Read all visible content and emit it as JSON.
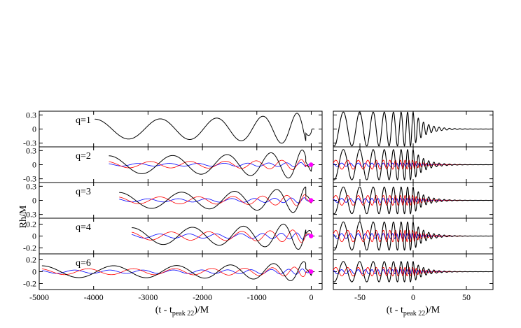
{
  "chart_data": {
    "type": "line",
    "ylabel": "Rh/M",
    "left_xlabel": {
      "main": "(t - t",
      "sub": "peak 22",
      "tail": ")/M"
    },
    "right_xlabel": {
      "main": "(t - t",
      "sub": "peak 22",
      "tail": ")/M"
    },
    "left_xlim": [
      -5000,
      200
    ],
    "left_xticks": [
      -5000,
      -4000,
      -3000,
      -2000,
      -1000,
      0
    ],
    "left_xtick_labels": [
      "-5000",
      "-4000",
      "-3000",
      "-2000",
      "-1000",
      "0"
    ],
    "right_xlim": [
      -75,
      75
    ],
    "right_xticks": [
      -50,
      0,
      50
    ],
    "right_xtick_labels": [
      "-50",
      "0",
      "50"
    ],
    "colors": {
      "h22": "#000000",
      "h33": "#ff0000",
      "h44": "#0000ff",
      "marker": "#ff00ff"
    },
    "panels": [
      {
        "label": "q=1",
        "ylim": [
          -0.38,
          0.38
        ],
        "yticks": [
          0.3,
          0,
          -0.3
        ],
        "ytick_labels": [
          "0.3",
          "0",
          "-0.3"
        ],
        "t_start": -3980,
        "amp22": 0.38,
        "amp33": 0,
        "amp44": 0,
        "markers": false,
        "yticks_bottom": false
      },
      {
        "label": "q=2",
        "ylim": [
          -0.38,
          0.38
        ],
        "yticks": [
          0.3,
          0,
          -0.3
        ],
        "ytick_labels": [
          "0.3",
          "0",
          "-0.3"
        ],
        "t_start": -3720,
        "amp22": 0.34,
        "amp33": 0.12,
        "amp44": 0.05,
        "markers": true
      },
      {
        "label": "q=3",
        "ylim": [
          -0.38,
          0.38
        ],
        "yticks": [
          0.3,
          0,
          -0.3
        ],
        "ytick_labels": [
          "0.3",
          "0",
          "-0.3"
        ],
        "t_start": -3530,
        "amp22": 0.3,
        "amp33": 0.13,
        "amp44": 0.06,
        "markers": true
      },
      {
        "label": "q=4",
        "ylim": [
          -0.3,
          0.3
        ],
        "yticks": [
          0.2,
          0,
          -0.2
        ],
        "ytick_labels": [
          "0.2",
          "0",
          "-0.2"
        ],
        "t_start": -3300,
        "amp22": 0.25,
        "amp33": 0.12,
        "amp44": 0.06,
        "markers": true
      },
      {
        "label": "q=6",
        "ylim": [
          -0.3,
          0.3
        ],
        "yticks": [
          0.2,
          0,
          -0.2
        ],
        "ytick_labels": [
          "0.2",
          "0",
          "-0.2"
        ],
        "t_start": -4950,
        "amp22": 0.18,
        "amp33": 0.09,
        "amp44": 0.05,
        "markers": true
      }
    ]
  }
}
